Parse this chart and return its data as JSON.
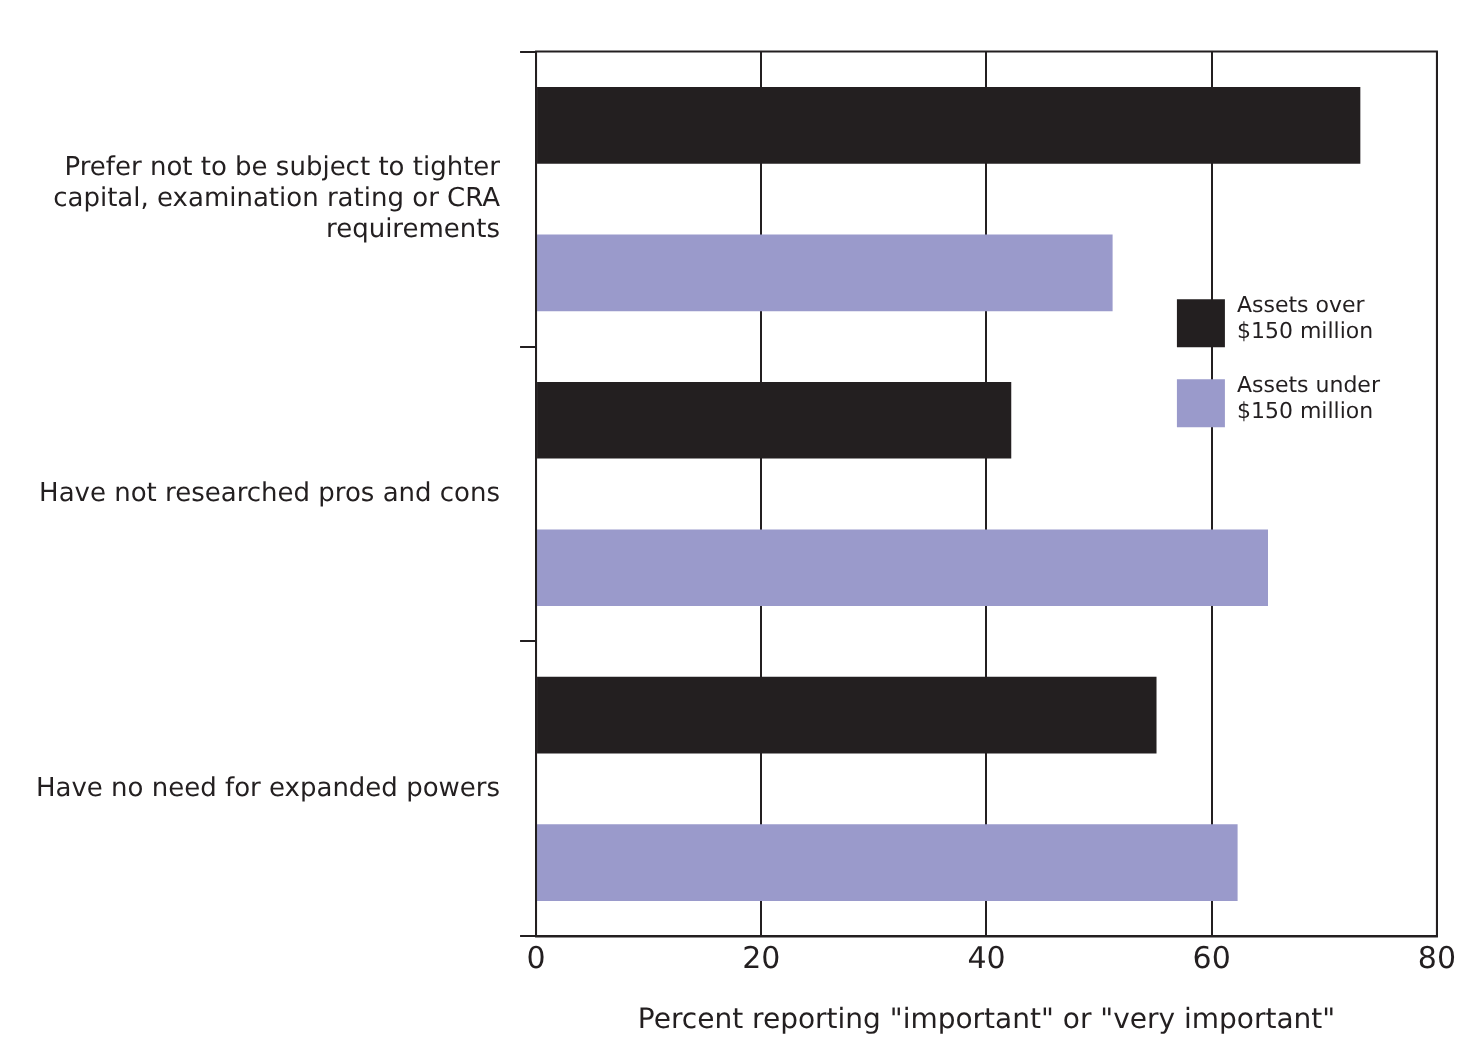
{
  "chart_data": {
    "type": "bar",
    "orientation": "horizontal",
    "xlabel": "Percent reporting \"important\" or \"very important\"",
    "categories": [
      "Prefer not to be subject to tighter capital, examination rating or CRA requirements",
      "Have not researched pros and cons",
      "Have no need for expanded powers"
    ],
    "series": [
      {
        "name": "Assets over $150 million",
        "color": "#231f20",
        "values": [
          73.2,
          42.2,
          55.1
        ]
      },
      {
        "name": "Assets under $150 million",
        "color": "#9a9acb",
        "values": [
          51.2,
          65,
          62.3
        ]
      }
    ],
    "xlim": [
      0,
      80
    ],
    "xticks": [
      0,
      20,
      40,
      60,
      80
    ],
    "grid": "x",
    "legend": "right"
  }
}
